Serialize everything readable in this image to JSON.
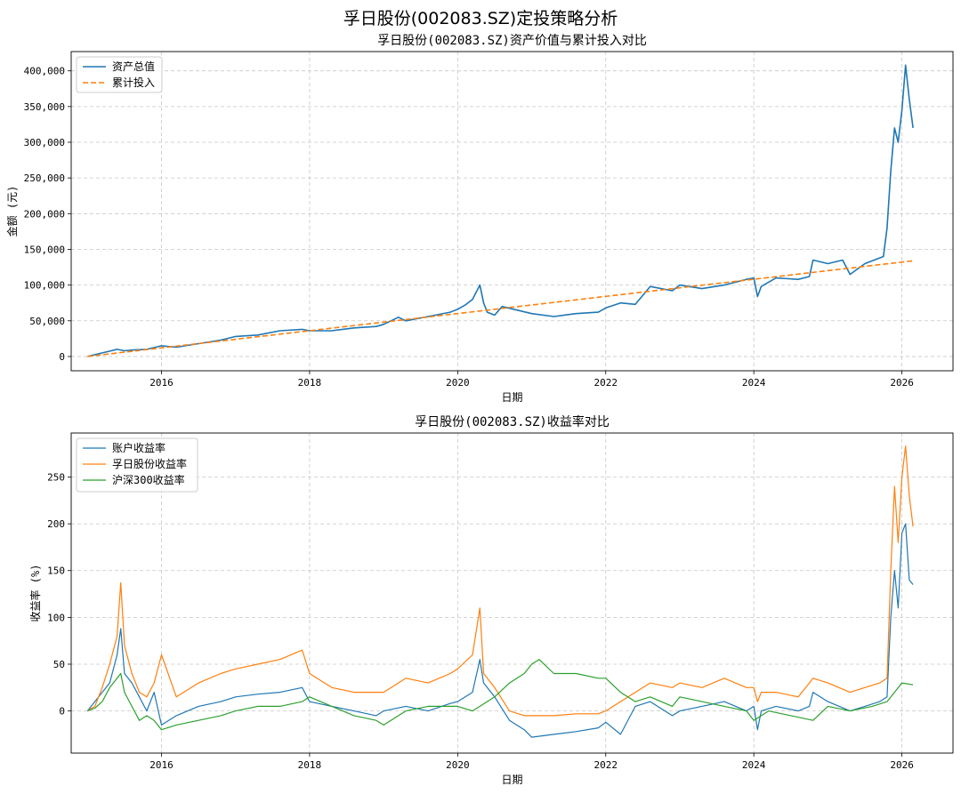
{
  "figure": {
    "suptitle": "孚日股份(002083.SZ)定投策略分析"
  },
  "colors": {
    "blue": "#1f77b4",
    "orange": "#ff7f0e",
    "green": "#2ca02c",
    "grid": "#b0b0b0"
  },
  "chart_data": [
    {
      "type": "line",
      "title": "孚日股份(002083.SZ)资产价值与累计投入对比",
      "xlabel": "日期",
      "ylabel": "金额 (元)",
      "xlim": [
        2014.78,
        2026.69
      ],
      "ylim": [
        -20000,
        427000
      ],
      "xticks": [
        2016,
        2018,
        2020,
        2022,
        2024,
        2026
      ],
      "xtick_labels": [
        "2016",
        "2018",
        "2020",
        "2022",
        "2024",
        "2026"
      ],
      "yticks": [
        0,
        50000,
        100000,
        150000,
        200000,
        250000,
        300000,
        350000,
        400000
      ],
      "ytick_labels": [
        "0",
        "50,000",
        "100,000",
        "150,000",
        "200,000",
        "250,000",
        "300,000",
        "350,000",
        "400,000"
      ],
      "grid": true,
      "legend": "upper left",
      "series": [
        {
          "name": "资产总值",
          "style": "solid",
          "color": "#1f77b4",
          "x": [
            2015.0,
            2015.2,
            2015.4,
            2015.5,
            2015.6,
            2015.8,
            2016.0,
            2016.2,
            2016.5,
            2016.8,
            2017.0,
            2017.3,
            2017.6,
            2017.9,
            2018.0,
            2018.3,
            2018.6,
            2018.9,
            2019.0,
            2019.2,
            2019.3,
            2019.6,
            2019.9,
            2020.0,
            2020.1,
            2020.2,
            2020.3,
            2020.35,
            2020.4,
            2020.5,
            2020.6,
            2020.8,
            2021.0,
            2021.3,
            2021.6,
            2021.9,
            2022.0,
            2022.2,
            2022.4,
            2022.6,
            2022.9,
            2023.0,
            2023.3,
            2023.6,
            2023.9,
            2024.0,
            2024.05,
            2024.1,
            2024.3,
            2024.6,
            2024.75,
            2024.8,
            2025.0,
            2025.2,
            2025.3,
            2025.5,
            2025.7,
            2025.75,
            2025.8,
            2025.85,
            2025.9,
            2025.95,
            2026.0,
            2026.05,
            2026.1,
            2026.15
          ],
          "values": [
            0,
            5000,
            10000,
            8000,
            9000,
            10000,
            15000,
            13000,
            18000,
            23000,
            28000,
            30000,
            36000,
            38000,
            36000,
            36000,
            40000,
            42000,
            45000,
            55000,
            50000,
            56000,
            62000,
            66000,
            72000,
            80000,
            100000,
            75000,
            62000,
            58000,
            70000,
            65000,
            60000,
            56000,
            60000,
            62000,
            68000,
            75000,
            73000,
            98000,
            92000,
            100000,
            95000,
            100000,
            108000,
            110000,
            84000,
            98000,
            110000,
            108000,
            112000,
            135000,
            130000,
            135000,
            115000,
            130000,
            138000,
            140000,
            180000,
            260000,
            320000,
            300000,
            345000,
            408000,
            360000,
            320000
          ]
        },
        {
          "name": "累计投入",
          "style": "dashed",
          "color": "#ff7f0e",
          "x": [
            2015.0,
            2026.15
          ],
          "values": [
            0,
            134000
          ]
        }
      ]
    },
    {
      "type": "line",
      "title": "孚日股份(002083.SZ)收益率对比",
      "xlabel": "日期",
      "ylabel": "收益率 (%)",
      "xlim": [
        2014.78,
        2026.69
      ],
      "ylim": [
        -45,
        297
      ],
      "xticks": [
        2016,
        2018,
        2020,
        2022,
        2024,
        2026
      ],
      "xtick_labels": [
        "2016",
        "2018",
        "2020",
        "2022",
        "2024",
        "2026"
      ],
      "yticks": [
        0,
        50,
        100,
        150,
        200,
        250
      ],
      "ytick_labels": [
        "0",
        "50",
        "100",
        "150",
        "200",
        "250"
      ],
      "grid": true,
      "legend": "upper left",
      "series": [
        {
          "name": "账户收益率",
          "color": "#1f77b4",
          "x": [
            2015.0,
            2015.1,
            2015.2,
            2015.3,
            2015.4,
            2015.45,
            2015.5,
            2015.6,
            2015.7,
            2015.8,
            2015.9,
            2016.0,
            2016.2,
            2016.5,
            2016.8,
            2017.0,
            2017.3,
            2017.6,
            2017.9,
            2018.0,
            2018.3,
            2018.6,
            2018.9,
            2019.0,
            2019.3,
            2019.6,
            2019.9,
            2020.0,
            2020.2,
            2020.3,
            2020.35,
            2020.5,
            2020.7,
            2020.9,
            2021.0,
            2021.3,
            2021.6,
            2021.9,
            2022.0,
            2022.2,
            2022.4,
            2022.6,
            2022.9,
            2023.0,
            2023.3,
            2023.6,
            2023.9,
            2024.0,
            2024.05,
            2024.1,
            2024.3,
            2024.6,
            2024.75,
            2024.8,
            2025.0,
            2025.3,
            2025.5,
            2025.7,
            2025.8,
            2025.85,
            2025.9,
            2025.95,
            2026.0,
            2026.05,
            2026.1,
            2026.15
          ],
          "values": [
            0,
            10,
            20,
            30,
            60,
            88,
            40,
            30,
            15,
            0,
            20,
            -15,
            -5,
            5,
            10,
            15,
            18,
            20,
            25,
            10,
            5,
            0,
            -5,
            0,
            5,
            0,
            8,
            10,
            20,
            55,
            30,
            15,
            -10,
            -20,
            -28,
            -25,
            -22,
            -18,
            -12,
            -25,
            5,
            10,
            -5,
            0,
            5,
            10,
            0,
            5,
            -20,
            0,
            5,
            0,
            5,
            20,
            10,
            0,
            5,
            10,
            15,
            100,
            150,
            110,
            190,
            200,
            140,
            135
          ]
        },
        {
          "name": "孚日股份收益率",
          "color": "#ff7f0e",
          "x": [
            2015.0,
            2015.1,
            2015.2,
            2015.3,
            2015.4,
            2015.45,
            2015.5,
            2015.6,
            2015.7,
            2015.8,
            2015.9,
            2016.0,
            2016.2,
            2016.5,
            2016.8,
            2017.0,
            2017.3,
            2017.6,
            2017.9,
            2018.0,
            2018.3,
            2018.6,
            2018.9,
            2019.0,
            2019.3,
            2019.6,
            2019.9,
            2020.0,
            2020.2,
            2020.3,
            2020.35,
            2020.5,
            2020.7,
            2020.9,
            2021.0,
            2021.3,
            2021.6,
            2021.9,
            2022.0,
            2022.2,
            2022.4,
            2022.6,
            2022.9,
            2023.0,
            2023.3,
            2023.6,
            2023.9,
            2024.0,
            2024.05,
            2024.1,
            2024.3,
            2024.6,
            2024.75,
            2024.8,
            2025.0,
            2025.3,
            2025.5,
            2025.7,
            2025.8,
            2025.85,
            2025.9,
            2025.95,
            2026.0,
            2026.05,
            2026.1,
            2026.15
          ],
          "values": [
            0,
            5,
            25,
            50,
            80,
            137,
            70,
            40,
            20,
            15,
            30,
            60,
            15,
            30,
            40,
            45,
            50,
            55,
            65,
            40,
            25,
            20,
            20,
            20,
            35,
            30,
            40,
            45,
            60,
            110,
            40,
            25,
            0,
            -5,
            -5,
            -5,
            -3,
            -3,
            0,
            10,
            20,
            30,
            25,
            30,
            25,
            35,
            25,
            25,
            10,
            20,
            20,
            15,
            30,
            35,
            30,
            20,
            25,
            30,
            35,
            150,
            240,
            180,
            250,
            283,
            230,
            197
          ]
        },
        {
          "name": "沪深300收益率",
          "color": "#2ca02c",
          "x": [
            2015.0,
            2015.1,
            2015.2,
            2015.3,
            2015.4,
            2015.45,
            2015.5,
            2015.6,
            2015.7,
            2015.8,
            2015.9,
            2016.0,
            2016.2,
            2016.5,
            2016.8,
            2017.0,
            2017.3,
            2017.6,
            2017.9,
            2018.0,
            2018.3,
            2018.6,
            2018.9,
            2019.0,
            2019.3,
            2019.6,
            2019.9,
            2020.0,
            2020.2,
            2020.3,
            2020.5,
            2020.7,
            2020.9,
            2021.0,
            2021.1,
            2021.3,
            2021.6,
            2021.9,
            2022.0,
            2022.2,
            2022.4,
            2022.6,
            2022.9,
            2023.0,
            2023.3,
            2023.6,
            2023.9,
            2024.0,
            2024.2,
            2024.5,
            2024.8,
            2025.0,
            2025.3,
            2025.6,
            2025.8,
            2025.9,
            2026.0,
            2026.15
          ],
          "values": [
            0,
            3,
            10,
            25,
            35,
            40,
            20,
            5,
            -10,
            -5,
            -10,
            -20,
            -15,
            -10,
            -5,
            0,
            5,
            5,
            10,
            15,
            5,
            -5,
            -10,
            -15,
            0,
            5,
            5,
            5,
            0,
            5,
            15,
            30,
            40,
            50,
            55,
            40,
            40,
            35,
            35,
            20,
            10,
            15,
            5,
            15,
            10,
            5,
            0,
            -10,
            0,
            -5,
            -10,
            5,
            0,
            5,
            10,
            20,
            30,
            28
          ]
        }
      ]
    }
  ]
}
